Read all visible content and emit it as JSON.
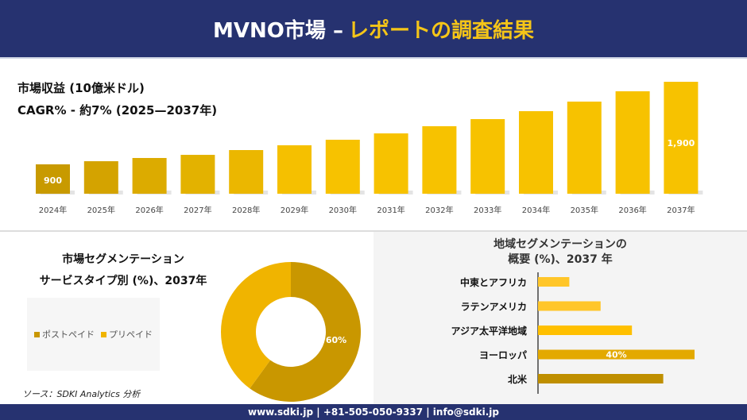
{
  "header": {
    "title_white": "MVNO市場 –",
    "title_yellow": "レポートの調査結果"
  },
  "revenue": {
    "title": "市場収益 (10億米ドル)",
    "cagr": "CAGR% - 約7% (2025—2037年)"
  },
  "chart_data": [
    {
      "type": "bar",
      "title": "市場収益 (10億米ドル)",
      "categories": [
        "2024年",
        "2025年",
        "2026年",
        "2027年",
        "2028年",
        "2029年",
        "2030年",
        "2031年",
        "2032年",
        "2033年",
        "2034年",
        "2035年",
        "2036年",
        "2037年"
      ],
      "values": [
        900,
        938,
        977,
        1015,
        1073,
        1131,
        1198,
        1275,
        1362,
        1448,
        1544,
        1660,
        1785,
        1900
      ],
      "data_labels": {
        "2024年": "900",
        "2037年": "1,900"
      },
      "colors": [
        "#c89a00",
        "#d4a300",
        "#dcab00",
        "#e3b200",
        "#ebb700",
        "#f5c000",
        "#f7c200",
        "#f7c200",
        "#f7c200",
        "#f7c200",
        "#f7c200",
        "#f7c200",
        "#f7c200",
        "#f7c200"
      ],
      "grid": false
    },
    {
      "type": "pie",
      "title": "市場セグメンテーション サービスタイプ別 (%)、2037年",
      "labels": [
        "ポストペイド",
        "プリペイド"
      ],
      "values": [
        60,
        40
      ],
      "data_labels": [
        "60%",
        ""
      ],
      "colors": [
        "#c99700",
        "#f0b400"
      ],
      "legend": "left"
    },
    {
      "type": "bar",
      "orientation": "horizontal",
      "title": "地域セグメンテーションの 概要 (%)、2037 年",
      "categories": [
        "中東とアフリカ",
        "ラテンアメリカ",
        "アジア太平洋地域",
        "ヨーロッパ",
        "北米"
      ],
      "values": [
        8,
        16,
        24,
        40,
        32
      ],
      "data_labels": [
        "",
        "",
        "",
        "40%",
        ""
      ],
      "colors": [
        "#ffc629",
        "#ffc629",
        "#ffc000",
        "#e3a900",
        "#bf8f00"
      ]
    }
  ],
  "segment": {
    "title_line1": "市場セグメンテーション",
    "title_line2": "サービスタイプ別 (%)、2037年",
    "legend": [
      "ポストペイド",
      "プリペイド"
    ]
  },
  "region": {
    "title_line1": "地域セグメンテーションの",
    "title_line2": "概要 (%)、2037 年"
  },
  "source": "ソース：SDKI Analytics 分析",
  "footer": "www.sdki.jp | +81-505-050-9337 | info@sdki.jp"
}
